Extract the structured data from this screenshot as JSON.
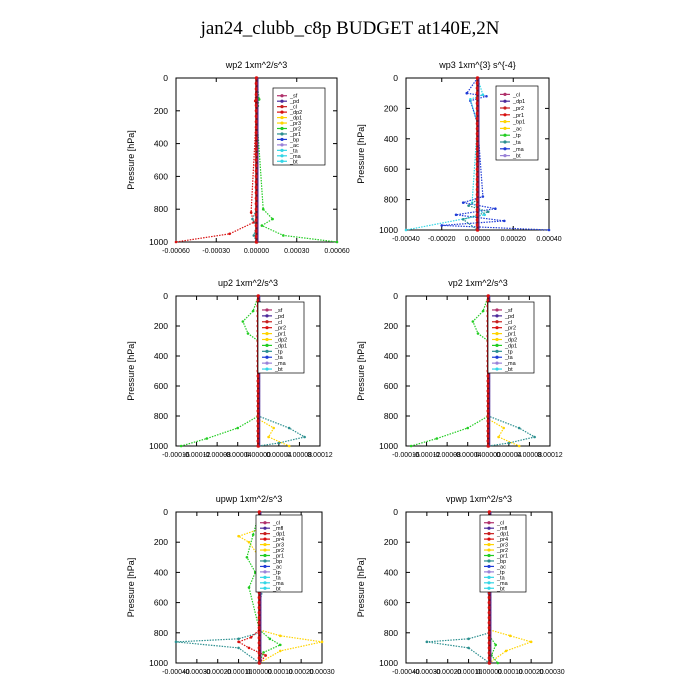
{
  "title": "jan24_clubb_c8p  BUDGET at140E,2N",
  "colors": {
    "sf": "#b0306a",
    "pd": "#4b2a9a",
    "cl": "#c81e1e",
    "dp": "#d81010",
    "pr": "#ffd400",
    "green": "#22cc22",
    "teal": "#2b8f8f",
    "blue": "#1f3bd6",
    "cyan": "#33d6e6",
    "lavender": "#9a82d8",
    "brown": "#7a5a2a",
    "profile": "#7a1010"
  },
  "chart_data": [
    {
      "type": "line",
      "title": "wp2   1xm^2/s^3",
      "ylabel": "Pressure [hPa]",
      "ylim": [
        0,
        1000
      ],
      "xlim": [
        -0.0006,
        0.0006
      ],
      "xticks": [
        "-0.00060",
        "-0.00030",
        "0.00000",
        "0.00030",
        "0.00060"
      ],
      "yticks": [
        "0",
        "200",
        "400",
        "600",
        "800",
        "1000"
      ],
      "legend": [
        "_sf",
        "_pd",
        "_cl",
        "_dp2",
        "_dp1",
        "_pr3",
        "_pr2",
        "_pr1",
        "_bp",
        "_ac",
        "_ta",
        "_ma",
        "_bt"
      ],
      "series": [
        {
          "color": "sf",
          "x": [
            0,
            0,
            0,
            0,
            0,
            0,
            0
          ],
          "y": [
            0,
            200,
            400,
            600,
            800,
            900,
            1000
          ]
        },
        {
          "color": "green",
          "x": [
            0,
            2e-05,
            1e-05,
            0,
            5e-05,
            0.00012,
            4e-05,
            0.0002,
            0.0006
          ],
          "y": [
            0,
            130,
            170,
            200,
            800,
            860,
            900,
            960,
            1000
          ]
        },
        {
          "color": "dp",
          "x": [
            0,
            -1e-05,
            0,
            0,
            -4e-05,
            -2e-05,
            -0.0002,
            -0.0006
          ],
          "y": [
            0,
            140,
            180,
            200,
            820,
            880,
            950,
            1000
          ]
        },
        {
          "color": "teal",
          "x": [
            0,
            0,
            -3e-05,
            0,
            -2e-05,
            0
          ],
          "y": [
            0,
            800,
            860,
            900,
            960,
            1000
          ]
        }
      ]
    },
    {
      "type": "line",
      "title": "wp3   1xm^{3} s^{-4}",
      "ylabel": "Pressure [hPa]",
      "ylim": [
        0,
        1000
      ],
      "xlim": [
        -0.0004,
        0.0004
      ],
      "xticks": [
        "-0.00040",
        "-0.00020",
        "0.00000",
        "0.00020",
        "0.00040"
      ],
      "yticks": [
        "0",
        "200",
        "400",
        "600",
        "800",
        "1000"
      ],
      "legend": [
        "_cl",
        "_dp1",
        "_pr2",
        "_pr1",
        "_bp1",
        "_ac",
        "_tp",
        "_ta",
        "_ma",
        "_bt"
      ],
      "series": [
        {
          "color": "cl",
          "x": [
            0,
            0,
            0,
            0,
            0
          ],
          "y": [
            0,
            200,
            500,
            800,
            1000
          ]
        },
        {
          "color": "blue",
          "x": [
            0,
            -6e-05,
            5e-05,
            -4e-05,
            0,
            3e-05,
            -8e-05,
            0.0001,
            -0.00012,
            0.00015,
            -0.0002,
            0.0004
          ],
          "y": [
            0,
            100,
            120,
            150,
            300,
            780,
            820,
            860,
            900,
            940,
            970,
            1000
          ]
        },
        {
          "color": "cyan",
          "x": [
            0,
            3e-05,
            -4e-05,
            0,
            -3e-05,
            4e-05,
            -0.0004
          ],
          "y": [
            0,
            110,
            140,
            300,
            820,
            900,
            1000
          ]
        },
        {
          "color": "teal",
          "x": [
            0,
            0,
            -5e-05,
            6e-05,
            -8e-05,
            0
          ],
          "y": [
            0,
            800,
            840,
            880,
            930,
            1000
          ]
        }
      ]
    },
    {
      "type": "line",
      "title": "up2   1xm^2/s^3",
      "ylabel": "Pressure [hPa]",
      "ylim": [
        0,
        1000
      ],
      "xlim": [
        -0.00016,
        0.00012
      ],
      "xticks": [
        "-0.00016",
        "-0.00012",
        "-0.00008",
        "-0.00004",
        "0.00000",
        "0.00004",
        "0.00008",
        "0.00012"
      ],
      "yticks": [
        "0",
        "200",
        "400",
        "600",
        "800",
        "1000"
      ],
      "legend": [
        "_sf",
        "_pd",
        "_cl",
        "_pr2",
        "_pr1",
        "_dp2",
        "_dp1",
        "_tp",
        "_ta",
        "_ma",
        "_bt"
      ],
      "series": [
        {
          "color": "dp",
          "x": [
            0,
            0,
            0,
            0,
            0
          ],
          "y": [
            0,
            200,
            500,
            800,
            1000
          ]
        },
        {
          "color": "green",
          "x": [
            0,
            -1e-05,
            -3e-05,
            -2e-05,
            0,
            0,
            -4e-05,
            -0.0001,
            -0.00015
          ],
          "y": [
            0,
            100,
            170,
            250,
            300,
            800,
            880,
            950,
            1000
          ]
        },
        {
          "color": "teal",
          "x": [
            0,
            1e-05,
            3e-05,
            1e-05,
            0,
            0,
            6e-05,
            9e-05,
            4e-05,
            0
          ],
          "y": [
            0,
            100,
            180,
            260,
            300,
            800,
            880,
            940,
            980,
            1000
          ]
        },
        {
          "color": "pr",
          "x": [
            0,
            0,
            3e-05,
            2e-05,
            6e-05
          ],
          "y": [
            0,
            820,
            880,
            940,
            1000
          ]
        }
      ]
    },
    {
      "type": "line",
      "title": "vp2   1xm^2/s^3",
      "ylabel": "Pressure [hPa]",
      "ylim": [
        0,
        1000
      ],
      "xlim": [
        -0.00016,
        0.00012
      ],
      "xticks": [
        "-0.00016",
        "-0.00012",
        "-0.00008",
        "-0.00004",
        "0.00000",
        "0.00004",
        "0.00008",
        "0.00012"
      ],
      "yticks": [
        "0",
        "200",
        "400",
        "600",
        "800",
        "1000"
      ],
      "legend": [
        "_sf",
        "_pd",
        "_cl",
        "_pr2",
        "_pr1",
        "_dp2",
        "_dp1",
        "_tp",
        "_ta",
        "_ma",
        "_bt"
      ],
      "series": [
        {
          "color": "dp",
          "x": [
            0,
            0,
            0,
            0,
            0
          ],
          "y": [
            0,
            200,
            500,
            800,
            1000
          ]
        },
        {
          "color": "green",
          "x": [
            0,
            -1e-05,
            -3e-05,
            -2e-05,
            0,
            0,
            -4e-05,
            -0.0001,
            -0.00015
          ],
          "y": [
            0,
            100,
            170,
            250,
            300,
            800,
            880,
            950,
            1000
          ]
        },
        {
          "color": "teal",
          "x": [
            0,
            1e-05,
            3e-05,
            1e-05,
            0,
            0,
            6e-05,
            9e-05,
            4e-05,
            0
          ],
          "y": [
            0,
            100,
            180,
            260,
            300,
            800,
            880,
            940,
            980,
            1000
          ]
        },
        {
          "color": "pr",
          "x": [
            0,
            0,
            3e-05,
            2e-05,
            6e-05
          ],
          "y": [
            0,
            820,
            880,
            940,
            1000
          ]
        }
      ]
    },
    {
      "type": "line",
      "title": "upwp   1xm^2/s^3",
      "ylabel": "Pressure [hPa]",
      "ylim": [
        0,
        1000
      ],
      "xlim": [
        -0.0004,
        0.0003
      ],
      "xticks": [
        "-0.00040",
        "-0.00030",
        "-0.00020",
        "-0.00010",
        "0.00000",
        "0.00010",
        "0.00020",
        "0.00030"
      ],
      "yticks": [
        "0",
        "200",
        "400",
        "600",
        "800",
        "1000"
      ],
      "legend": [
        "_cl",
        "_mfl",
        "_dp1",
        "_pr4",
        "_pr3",
        "_pr2",
        "_pr1",
        "_bp",
        "_ac",
        "_tp",
        "_ta",
        "_ma",
        "_bt"
      ],
      "series": [
        {
          "color": "profile",
          "x": [
            0,
            0,
            0,
            0,
            0
          ],
          "y": [
            0,
            200,
            500,
            800,
            1000
          ]
        },
        {
          "color": "pr",
          "x": [
            0,
            3e-05,
            -0.0001,
            -5e-05,
            0,
            0,
            0.0001,
            0.0003,
            0.0001,
            0
          ],
          "y": [
            0,
            100,
            160,
            200,
            300,
            780,
            820,
            860,
            920,
            1000
          ]
        },
        {
          "color": "green",
          "x": [
            0,
            -3e-05,
            -6e-05,
            -2e-05,
            -5e-05,
            0,
            5e-05,
            0.0001,
            2e-05,
            0
          ],
          "y": [
            0,
            150,
            300,
            400,
            500,
            780,
            840,
            880,
            930,
            1000
          ]
        },
        {
          "color": "teal",
          "x": [
            0,
            4e-05,
            2e-05,
            3e-05,
            0,
            0,
            -0.0001,
            -0.0004,
            -0.0001,
            0
          ],
          "y": [
            0,
            150,
            300,
            450,
            600,
            800,
            840,
            860,
            900,
            1000
          ]
        },
        {
          "color": "dp",
          "x": [
            0,
            0,
            -4e-05,
            -0.0001,
            -5e-05,
            3e-05,
            0
          ],
          "y": [
            0,
            780,
            830,
            860,
            900,
            950,
            1000
          ]
        }
      ]
    },
    {
      "type": "line",
      "title": "vpwp   1xm^2/s^3",
      "ylabel": "Pressure [hPa]",
      "ylim": [
        0,
        1000
      ],
      "xlim": [
        -0.0004,
        0.0003
      ],
      "xticks": [
        "-0.00040",
        "-0.00030",
        "-0.00020",
        "-0.00010",
        "0.00000",
        "0.00010",
        "0.00020",
        "0.00030"
      ],
      "yticks": [
        "0",
        "200",
        "400",
        "600",
        "800",
        "1000"
      ],
      "legend": [
        "_cl",
        "_mfl",
        "_dp1",
        "_pr4",
        "_pr3",
        "_pr2",
        "_pr1",
        "_bp",
        "_ac",
        "_tp",
        "_ta",
        "_ma",
        "_bt"
      ],
      "series": [
        {
          "color": "profile",
          "x": [
            0,
            0,
            0,
            0,
            0
          ],
          "y": [
            0,
            200,
            500,
            800,
            1000
          ]
        },
        {
          "color": "pr",
          "x": [
            0,
            2e-05,
            1e-05,
            0,
            0,
            0.0001,
            0.0002,
            8e-05,
            0
          ],
          "y": [
            0,
            150,
            300,
            500,
            780,
            820,
            860,
            920,
            1000
          ]
        },
        {
          "color": "teal",
          "x": [
            0,
            0,
            -0.0001,
            -0.0003,
            -0.0001,
            0
          ],
          "y": [
            0,
            800,
            840,
            860,
            900,
            1000
          ]
        },
        {
          "color": "blue",
          "x": [
            0,
            3e-05,
            -2e-05,
            0
          ],
          "y": [
            0,
            200,
            400,
            600
          ]
        },
        {
          "color": "green",
          "x": [
            0,
            0,
            3e-05,
            1e-05,
            4e-05
          ],
          "y": [
            0,
            820,
            880,
            950,
            1000
          ]
        }
      ]
    }
  ]
}
